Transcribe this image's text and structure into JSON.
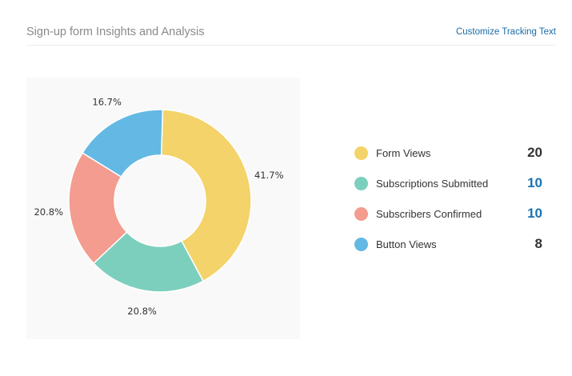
{
  "header": {
    "title": "Sign-up form Insights and Analysis",
    "customize_link": "Customize Tracking Text"
  },
  "chart_data": {
    "type": "pie",
    "donut": true,
    "categories": [
      "Form Views",
      "Subscriptions Submitted",
      "Subscribers Confirmed",
      "Button Views"
    ],
    "values": [
      20,
      10,
      10,
      8
    ],
    "percent_labels": [
      "41.7%",
      "20.8%",
      "20.8%",
      "16.7%"
    ],
    "colors": [
      "#f3d36a",
      "#7dcfbd",
      "#f39c8f",
      "#63b9e3"
    ],
    "legend_position": "right"
  },
  "legend": {
    "items": [
      {
        "label": "Form Views",
        "value": "20",
        "color": "#f3d36a",
        "value_color": "#333333"
      },
      {
        "label": "Subscriptions Submitted",
        "value": "10",
        "color": "#7dcfbd",
        "value_color": "#1a73b0"
      },
      {
        "label": "Subscribers Confirmed",
        "value": "10",
        "color": "#f39c8f",
        "value_color": "#1a73b0"
      },
      {
        "label": "Button Views",
        "value": "8",
        "color": "#63b9e3",
        "value_color": "#333333"
      }
    ]
  }
}
